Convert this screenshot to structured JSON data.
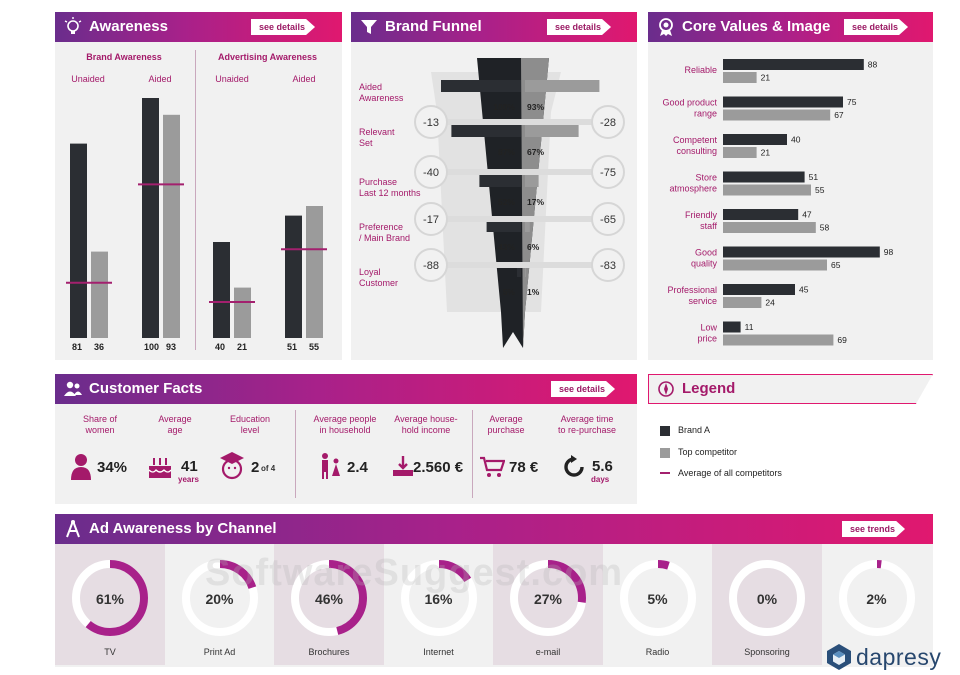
{
  "awareness": {
    "title": "Awareness",
    "see": "see details",
    "brand_title": "Brand Awareness",
    "adv_title": "Advertising Awareness",
    "unaided": "Unaided",
    "aided": "Aided",
    "groups": [
      {
        "brandA": 81,
        "top": 36,
        "avg": 23
      },
      {
        "brandA": 100,
        "top": 93,
        "avg": 64
      },
      {
        "brandA": 40,
        "top": 21,
        "avg": 15
      },
      {
        "brandA": 51,
        "top": 55,
        "avg": 37
      }
    ],
    "labels": [
      "81",
      "36",
      "100",
      "93",
      "40",
      "21",
      "51",
      "55"
    ]
  },
  "funnel": {
    "title": "Brand Funnel",
    "see": "see details",
    "stages": [
      {
        "label": "Aided\nAwareness",
        "brandA": "100%",
        "top": "93%",
        "a": 100,
        "t": 93
      },
      {
        "label": "Relevant\nSet",
        "brandA": "87%",
        "top": "67%",
        "a": 87,
        "t": 67
      },
      {
        "label": "Purchase\nLast 12 months",
        "brandA": "52%",
        "top": "17%",
        "a": 52,
        "t": 17
      },
      {
        "label": "Preference\n/ Main Brand",
        "brandA": "43%",
        "top": "6%",
        "a": 43,
        "t": 6
      },
      {
        "label": "Loyal\nCustomer",
        "brandA": "5%",
        "top": "1%",
        "a": 5,
        "t": 1
      }
    ],
    "drops_left": [
      "-13",
      "-40",
      "-17",
      "-88"
    ],
    "drops_right": [
      "-28",
      "-75",
      "-65",
      "-83"
    ]
  },
  "core": {
    "title": "Core Values & Image",
    "see": "see details",
    "items": [
      {
        "label": "Reliable",
        "a": 88,
        "t": 21
      },
      {
        "label": "Good product\nrange",
        "a": 75,
        "t": 67
      },
      {
        "label": "Competent\nconsulting",
        "a": 40,
        "t": 21
      },
      {
        "label": "Store\natmosphere",
        "a": 51,
        "t": 55
      },
      {
        "label": "Friendly\nstaff",
        "a": 47,
        "t": 58
      },
      {
        "label": "Good\nquality",
        "a": 98,
        "t": 65
      },
      {
        "label": "Professional\nservice",
        "a": 45,
        "t": 24
      },
      {
        "label": "Low\nprice",
        "a": 11,
        "t": 69
      }
    ]
  },
  "facts": {
    "title": "Customer Facts",
    "see": "see details",
    "items": [
      {
        "label": "Share of\nwomen",
        "value": "34%",
        "sub": ""
      },
      {
        "label": "Average\nage",
        "value": "41",
        "sub": "years"
      },
      {
        "label": "Education\nlevel",
        "value": "2",
        "sub": "of 4"
      },
      {
        "label": "Average people\nin household",
        "value": "2.4",
        "sub": ""
      },
      {
        "label": "Average house-\nhold income",
        "value": "2.560 €",
        "sub": ""
      },
      {
        "label": "Average\npurchase",
        "value": "78 €",
        "sub": ""
      },
      {
        "label": "Average time\nto re-purchase",
        "value": "5.6",
        "sub": "days"
      }
    ]
  },
  "legend": {
    "title": "Legend",
    "brandA": "Brand A",
    "top": "Top competitor",
    "avg": "Average of all competitors"
  },
  "channels": {
    "title": "Ad Awareness by Channel",
    "see": "see trends",
    "items": [
      {
        "label": "TV",
        "value": "61%",
        "pct": 61,
        "shade": true
      },
      {
        "label": "Print Ad",
        "value": "20%",
        "pct": 20,
        "shade": false
      },
      {
        "label": "Brochures",
        "value": "46%",
        "pct": 46,
        "shade": true
      },
      {
        "label": "Internet",
        "value": "16%",
        "pct": 16,
        "shade": false
      },
      {
        "label": "e-mail",
        "value": "27%",
        "pct": 27,
        "shade": true
      },
      {
        "label": "Radio",
        "value": "5%",
        "pct": 5,
        "shade": false
      },
      {
        "label": "Sponsoring",
        "value": "0%",
        "pct": 0,
        "shade": true
      },
      {
        "label": "",
        "value": "2%",
        "pct": 2,
        "shade": false
      }
    ]
  },
  "watermark": "SoftwareSuggest.com",
  "brand_logo": "dapresy",
  "colors": {
    "brandA": "#2b2e33",
    "top": "#9b9b9b",
    "avg": "#a3206e",
    "accent": "#a8218a"
  }
}
